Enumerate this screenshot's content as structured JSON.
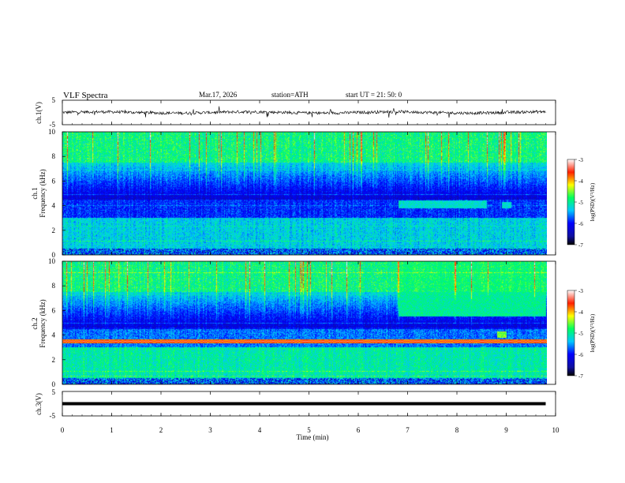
{
  "header": {
    "title": "VLF  Spectra",
    "date": "Mar.17, 2026",
    "station": "station=ATH",
    "start": "start  UT  =    21: 50: 0"
  },
  "chart_data": {
    "type": "heatmap",
    "x_axis": {
      "label": "Time  (min)",
      "range": [
        0,
        10
      ],
      "ticks": [
        "0",
        "1",
        "2",
        "3",
        "4",
        "5",
        "6",
        "7",
        "8",
        "9",
        "10"
      ],
      "data_extent_min": 9.8
    },
    "panels": [
      {
        "name": "ch.1(V)",
        "kind": "waveform",
        "ylim": [
          -5,
          5
        ],
        "yticks": [
          "5",
          "-5"
        ],
        "baseline": 0,
        "amplitude": "noisy, ~±1 V"
      },
      {
        "name": "ch.1",
        "kind": "spectrogram",
        "ylabel": "Frequency  (kHz)",
        "ylim": [
          0,
          10
        ],
        "yticks": [
          "0",
          "2",
          "4",
          "6",
          "8",
          "10"
        ],
        "colorbar": {
          "label": "log(PSD)(V²/Hz)",
          "range": [
            -7,
            -3
          ],
          "ticks": [
            "-3",
            "-4",
            "-5",
            "-6",
            "-7"
          ]
        },
        "events": [
          {
            "t_start": 6.8,
            "t_end": 8.6,
            "f_low": 3.8,
            "f_high": 4.4,
            "level": -5.2
          },
          {
            "t_start": 8.9,
            "t_end": 9.1,
            "f_low": 3.8,
            "f_high": 4.3,
            "level": -5.2
          }
        ]
      },
      {
        "name": "ch.2",
        "kind": "spectrogram",
        "ylabel": "Frequency  (kHz)",
        "ylim": [
          0,
          10
        ],
        "yticks": [
          "0",
          "2",
          "4",
          "6",
          "8",
          "10"
        ],
        "colorbar": {
          "label": "log(PSD)(V²/Hz)",
          "range": [
            -7,
            -3
          ],
          "ticks": [
            "-3",
            "-4",
            "-5",
            "-6",
            "-7"
          ]
        },
        "events": [
          {
            "t_start": 6.8,
            "t_end": 9.8,
            "f_low": 5.5,
            "f_high": 10,
            "level": -5.0
          },
          {
            "t_start": 8.8,
            "t_end": 9.0,
            "f_low": 3.8,
            "f_high": 4.3,
            "level": -4.5
          }
        ]
      },
      {
        "name": "ch.3(V)",
        "kind": "waveform",
        "ylim": [
          -5,
          5
        ],
        "yticks": [
          "5",
          "-5"
        ],
        "baseline": 0,
        "amplitude": "flat, ~0 V"
      }
    ]
  }
}
